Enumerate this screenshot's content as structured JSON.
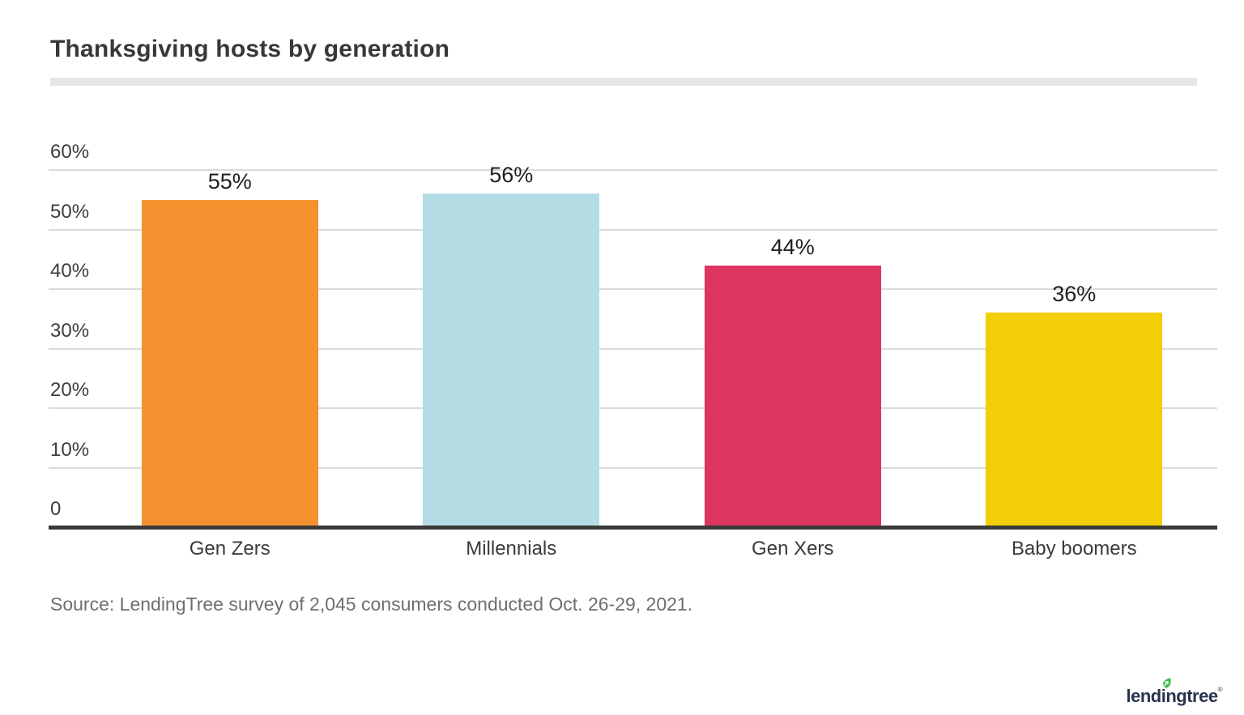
{
  "title": "Thanksgiving hosts by generation",
  "source": "Source: LendingTree survey of 2,045 consumers conducted Oct. 26-29, 2021.",
  "logo": {
    "text": "lendingtree",
    "registered": "®",
    "text_color": "#28334d",
    "leaf_color": "#3dbe4e"
  },
  "chart_data": {
    "type": "bar",
    "title": "Thanksgiving hosts by generation",
    "categories": [
      "Gen Zers",
      "Millennials",
      "Gen Xers",
      "Baby boomers"
    ],
    "values": [
      55,
      56,
      44,
      36
    ],
    "value_labels": [
      "55%",
      "56%",
      "44%",
      "36%"
    ],
    "bar_colors": [
      "#f5922f",
      "#b4dce5",
      "#db3560",
      "#f2ce06"
    ],
    "xlabel": "",
    "ylabel": "",
    "ylim": [
      0,
      60
    ],
    "ytick_interval": 10,
    "ytick_labels": [
      "0",
      "10%",
      "20%",
      "30%",
      "40%",
      "50%",
      "60%"
    ],
    "grid": true,
    "legend": false,
    "colors": {
      "gridline": "#dbdbdb",
      "axis_line": "#3a3a3a",
      "tick_label": "#3d3d3d",
      "value_label": "#1f1f1f",
      "category_label": "#3b3b3b"
    }
  }
}
